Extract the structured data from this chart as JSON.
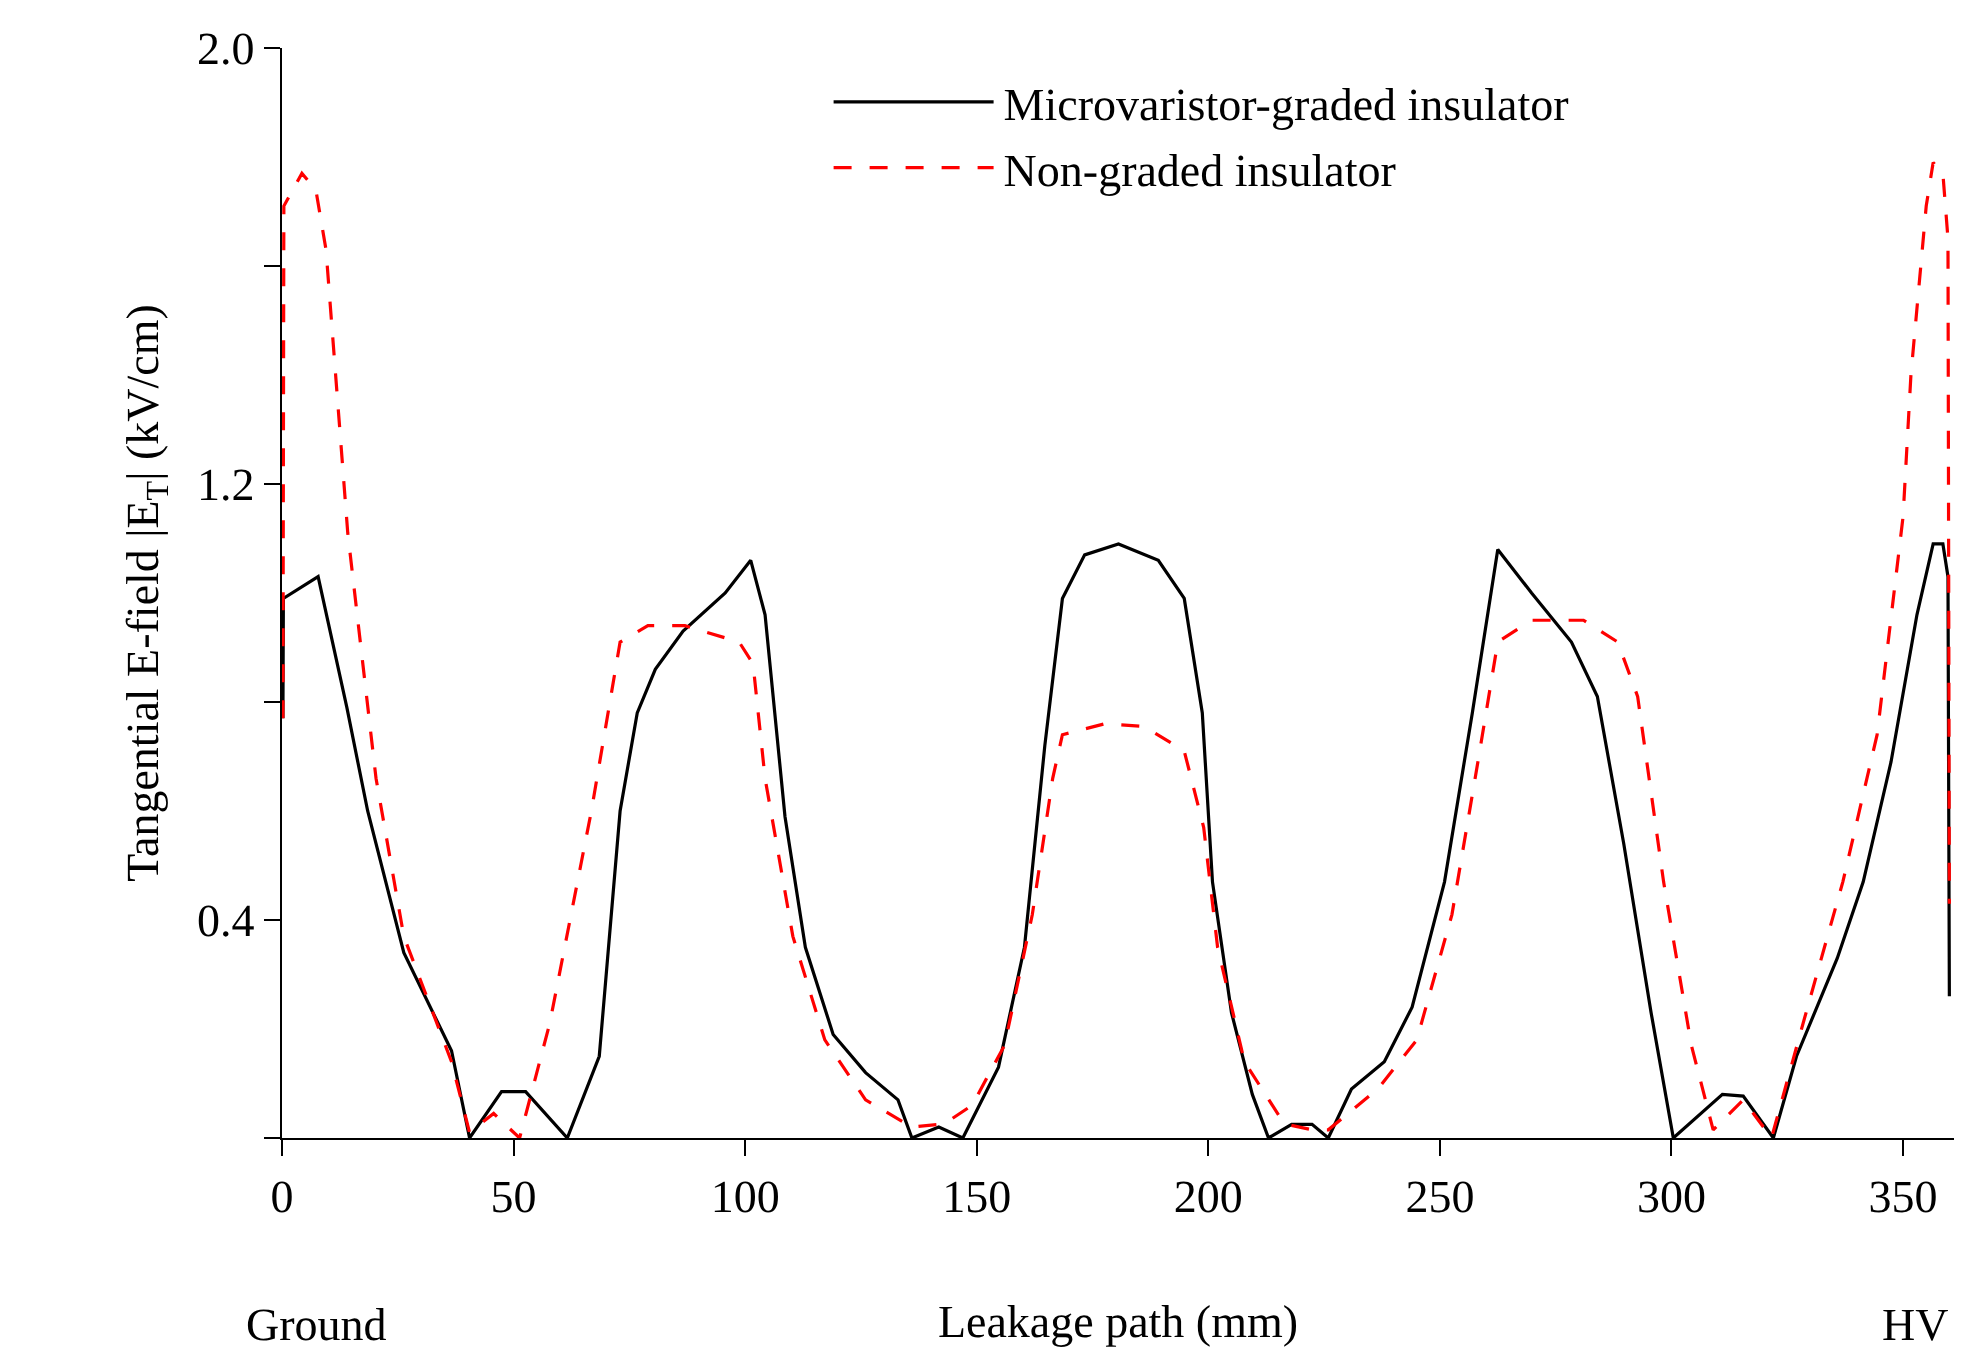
{
  "chart_data": {
    "type": "line",
    "xlabel": "Leakage path (mm)",
    "ylabel": "Tangential E-field |E$_{T}$| (kV/cm)",
    "annotations": [
      "Ground",
      "HV"
    ],
    "xlim": [
      0,
      361
    ],
    "xticks": [
      0,
      50,
      100,
      150,
      200,
      250,
      300,
      350
    ],
    "ylim": [
      0,
      2.0
    ],
    "yticks": [
      {
        "value": 0,
        "label": null
      },
      0.4,
      {
        "value": 0.8,
        "label": null
      },
      1.2,
      {
        "value": 1.6,
        "label": null
      },
      {
        "value": 2.0,
        "label": "2.0"
      }
    ],
    "legend": "top",
    "marker": "none",
    "series": [
      {
        "name": "Microvaristor-graded insulator",
        "color": "#000000",
        "line_style": "solid",
        "x": [
          0.2,
          0.3,
          7.8,
          14,
          18.5,
          26.3,
          36.6,
          40.5,
          47.4,
          52.6,
          61.6,
          68.5,
          73,
          76.7,
          80.6,
          86.6,
          95.7,
          101.2,
          104.3,
          108.6,
          113,
          119,
          126,
          133,
          136,
          141.8,
          147,
          154.7,
          160.3,
          164.7,
          168.5,
          173.3,
          180.6,
          189.2,
          194.8,
          198.7,
          200.9,
          205,
          209.5,
          213,
          218,
          222.4,
          225.9,
          230.9,
          238,
          244,
          251,
          257,
          262.5,
          269.8,
          278.4,
          284,
          289.7,
          295.6,
          300.4,
          311,
          315.5,
          322,
          327,
          335.8,
          341.4,
          347.4,
          353,
          356.5,
          358.6,
          359.7,
          360
        ],
        "values": [
          0.77,
          0.99,
          1.03,
          0.79,
          0.6,
          0.34,
          0.16,
          0,
          0.085,
          0.085,
          0,
          0.15,
          0.6,
          0.78,
          0.86,
          0.93,
          1.0,
          1.06,
          0.96,
          0.59,
          0.35,
          0.19,
          0.12,
          0.07,
          0,
          0.02,
          0,
          0.13,
          0.35,
          0.72,
          0.99,
          1.07,
          1.09,
          1.06,
          0.99,
          0.78,
          0.47,
          0.23,
          0.08,
          0,
          0.025,
          0.025,
          0,
          0.09,
          0.14,
          0.24,
          0.47,
          0.78,
          1.08,
          1.0,
          0.91,
          0.81,
          0.54,
          0.23,
          0,
          0.08,
          0.077,
          0,
          0.15,
          0.33,
          0.47,
          0.69,
          0.96,
          1.09,
          1.09,
          1.03,
          0.26
        ]
      },
      {
        "name": "Non-graded insulator",
        "color": "#ff0000",
        "line_style": "dashed",
        "x": [
          0.2,
          0.4,
          4.3,
          7.3,
          9.5,
          14.2,
          20.3,
          26.3,
          36.6,
          40.5,
          45.7,
          51.3,
          57.8,
          66.8,
          73,
          79,
          87,
          98.7,
          101.7,
          104.3,
          110.3,
          117.2,
          126,
          136,
          143,
          149,
          156,
          162,
          166.4,
          168.5,
          177.6,
          186.2,
          194.8,
          199,
          202,
          207.8,
          216.4,
          222.4,
          225.9,
          236.6,
          245,
          252.6,
          258.2,
          262.5,
          269.8,
          281,
          288.4,
          292.7,
          298.3,
          304.3,
          309,
          315.5,
          321.6,
          328.4,
          337,
          344.4,
          350,
          351.7,
          355,
          356.5,
          358.6,
          359.7,
          360
        ],
        "values": [
          0.77,
          1.71,
          1.77,
          1.74,
          1.63,
          1.11,
          0.66,
          0.37,
          0.14,
          0.01,
          0.045,
          0,
          0.21,
          0.6,
          0.91,
          0.94,
          0.94,
          0.91,
          0.87,
          0.66,
          0.37,
          0.18,
          0.07,
          0.02,
          0.026,
          0.06,
          0.17,
          0.41,
          0.66,
          0.74,
          0.76,
          0.755,
          0.71,
          0.57,
          0.35,
          0.14,
          0.026,
          0.015,
          0.015,
          0.09,
          0.18,
          0.41,
          0.69,
          0.91,
          0.95,
          0.95,
          0.91,
          0.81,
          0.47,
          0.17,
          0.015,
          0.07,
          0,
          0.21,
          0.47,
          0.74,
          1.14,
          1.4,
          1.71,
          1.79,
          1.77,
          1.65,
          0.43
        ]
      }
    ]
  }
}
